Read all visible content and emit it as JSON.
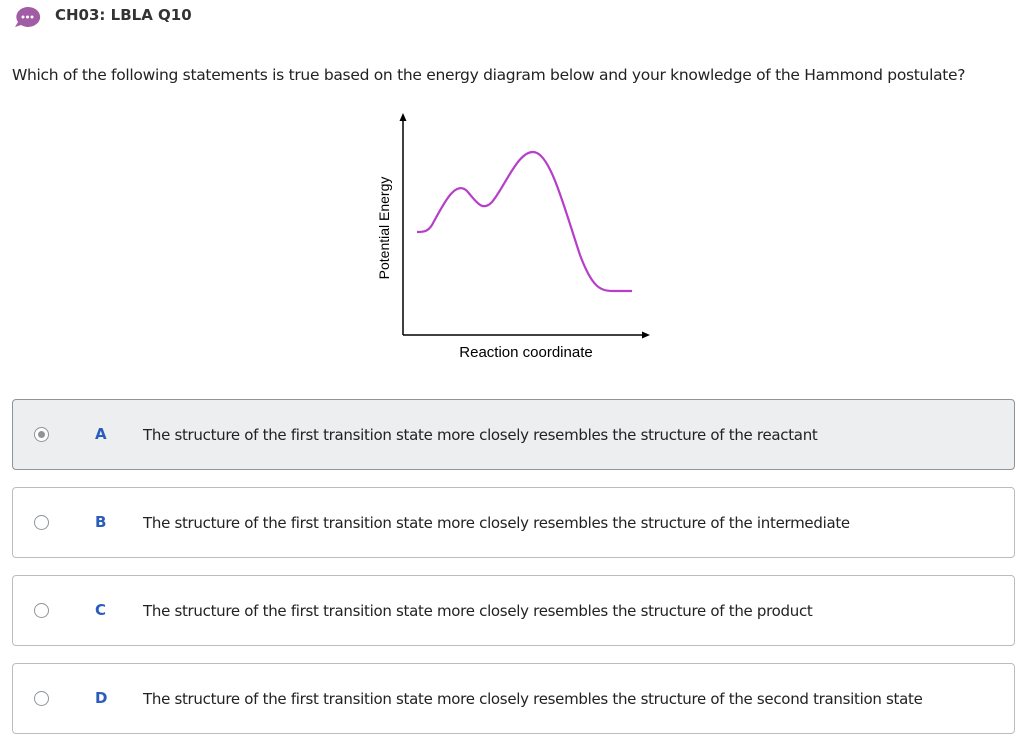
{
  "header": {
    "title": "CH03: LBLA Q10"
  },
  "question": "Which of the following statements is true based on the energy diagram below and your knowledge of the Hammond postulate?",
  "diagram": {
    "y_axis_label": "Potential Energy",
    "x_axis_label": "Reaction coordinate"
  },
  "options": [
    {
      "letter": "A",
      "text": "The structure of the first transition state more closely resembles the structure of the reactant",
      "selected": true
    },
    {
      "letter": "B",
      "text": "The structure of the first transition state more closely resembles the structure of the intermediate",
      "selected": false
    },
    {
      "letter": "C",
      "text": "The structure of the first transition state more closely resembles the structure of the product",
      "selected": false
    },
    {
      "letter": "D",
      "text": "The structure of the first transition state more closely resembles the structure of the second transition state",
      "selected": false
    }
  ]
}
